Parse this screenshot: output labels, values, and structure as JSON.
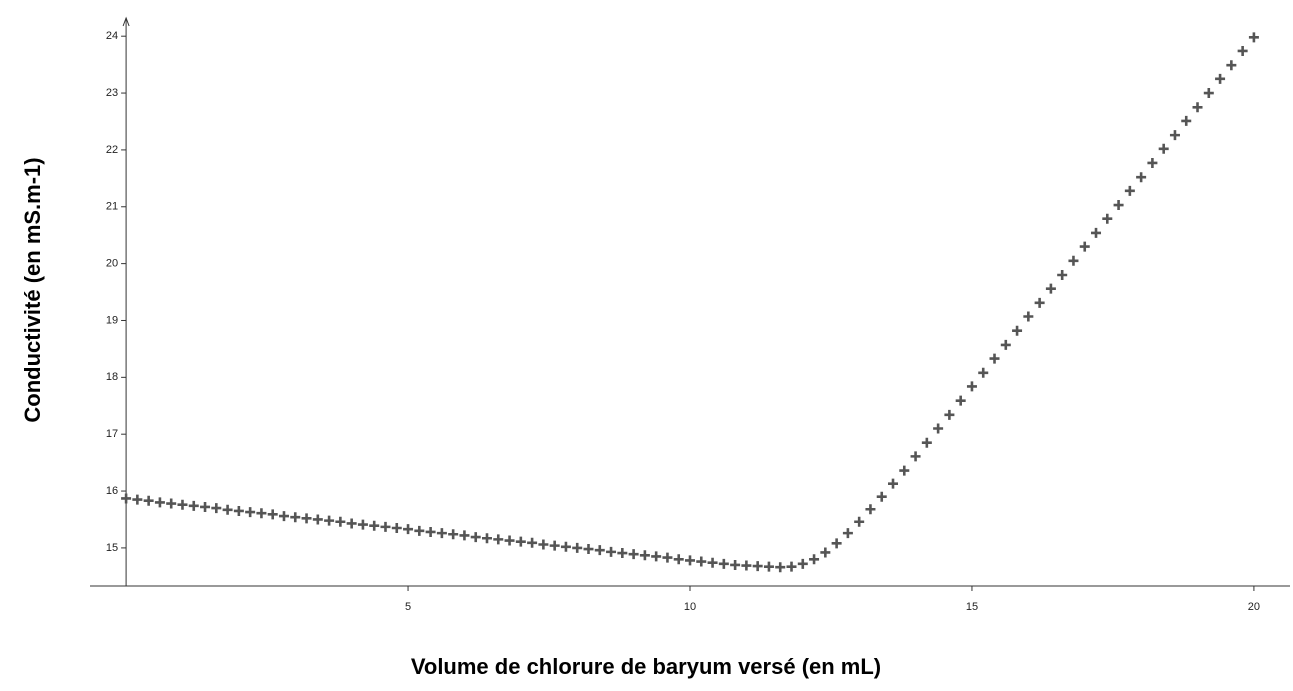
{
  "chart_data": {
    "type": "scatter",
    "x_label": "Volume de chlorure de baryum versé (en mL)",
    "y_label": "Conductivité  (en mS.m-1)",
    "color": "#555555",
    "xlim": [
      -0.64,
      20.64
    ],
    "ylim": [
      14.33,
      24.32
    ],
    "xticks": [
      5,
      10,
      15,
      20
    ],
    "yticks": [
      15,
      16,
      17,
      18,
      19,
      20,
      21,
      22,
      23,
      24
    ],
    "x": [
      0,
      0.2,
      0.4,
      0.6,
      0.8,
      1,
      1.2,
      1.4,
      1.6,
      1.8,
      2,
      2.2,
      2.4,
      2.6,
      2.8,
      3,
      3.2,
      3.4,
      3.6,
      3.8,
      4,
      4.2,
      4.4,
      4.6,
      4.8,
      5,
      5.2,
      5.4,
      5.6,
      5.8,
      6,
      6.2,
      6.4,
      6.6,
      6.8,
      7,
      7.2,
      7.4,
      7.6,
      7.8,
      8,
      8.2,
      8.4,
      8.6,
      8.8,
      9,
      9.2,
      9.4,
      9.6,
      9.8,
      10,
      10.2,
      10.4,
      10.6,
      10.8,
      11,
      11.2,
      11.4,
      11.6,
      11.8,
      12,
      12.2,
      12.4,
      12.6,
      12.8,
      13,
      13.2,
      13.4,
      13.6,
      13.8,
      14,
      14.2,
      14.4,
      14.6,
      14.8,
      15,
      15.2,
      15.4,
      15.6,
      15.8,
      16,
      16.2,
      16.4,
      16.6,
      16.8,
      17,
      17.2,
      17.4,
      17.6,
      17.8,
      18,
      18.2,
      18.4,
      18.6,
      18.8,
      19,
      19.2,
      19.4,
      19.6,
      19.8,
      20
    ],
    "values": [
      15.87,
      15.85,
      15.83,
      15.8,
      15.78,
      15.76,
      15.74,
      15.72,
      15.7,
      15.67,
      15.65,
      15.63,
      15.61,
      15.59,
      15.56,
      15.54,
      15.52,
      15.5,
      15.48,
      15.46,
      15.43,
      15.41,
      15.39,
      15.37,
      15.35,
      15.33,
      15.3,
      15.28,
      15.26,
      15.24,
      15.22,
      15.19,
      15.17,
      15.15,
      15.13,
      15.11,
      15.09,
      15.06,
      15.04,
      15.02,
      15,
      14.98,
      14.96,
      14.93,
      14.91,
      14.89,
      14.87,
      14.85,
      14.83,
      14.8,
      14.78,
      14.76,
      14.74,
      14.72,
      14.7,
      14.69,
      14.68,
      14.67,
      14.66,
      14.67,
      14.72,
      14.8,
      14.92,
      15.08,
      15.26,
      15.46,
      15.68,
      15.9,
      16.13,
      16.36,
      16.61,
      16.85,
      17.1,
      17.34,
      17.59,
      17.84,
      18.08,
      18.33,
      18.57,
      18.82,
      19.07,
      19.31,
      19.56,
      19.8,
      20.05,
      20.3,
      20.54,
      20.79,
      21.03,
      21.28,
      21.52,
      21.77,
      22.02,
      22.26,
      22.51,
      22.75,
      23,
      23.25,
      23.49,
      23.74,
      23.98
    ]
  }
}
